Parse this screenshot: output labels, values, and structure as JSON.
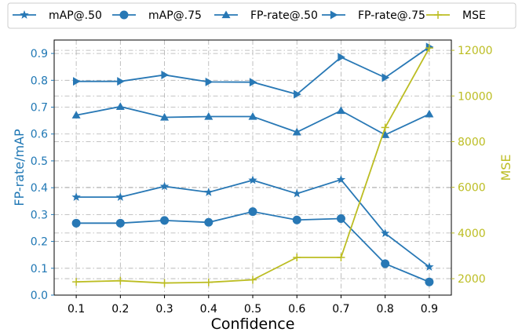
{
  "colors": {
    "left_axis": "#1f77b4",
    "right_axis": "#bcbd22",
    "line_blue": "#2878b5",
    "line_olive": "#bcbd22",
    "grid": "#b0b0b0"
  },
  "chart_data": {
    "type": "line",
    "x": [
      0.1,
      0.2,
      0.3,
      0.4,
      0.5,
      0.6,
      0.7,
      0.8,
      0.9
    ],
    "x_tick_labels": [
      "0.1",
      "0.2",
      "0.3",
      "0.4",
      "0.5",
      "0.6",
      "0.7",
      "0.8",
      "0.9"
    ],
    "xlabel": "Confidence",
    "ylabel_left": "FP-rate/mAP",
    "ylabel_right": "MSE",
    "ylim_left": [
      0,
      0.95
    ],
    "ylim_right": [
      1280,
      12450
    ],
    "y_left_ticks": [
      0.0,
      0.1,
      0.2,
      0.3,
      0.4,
      0.5,
      0.6,
      0.7,
      0.8,
      0.9
    ],
    "y_left_tick_labels": [
      "0.0",
      "0.1",
      "0.2",
      "0.3",
      "0.4",
      "0.5",
      "0.6",
      "0.7",
      "0.8",
      "0.9"
    ],
    "y_right_ticks": [
      2000,
      4000,
      6000,
      8000,
      10000,
      12000
    ],
    "y_right_tick_labels": [
      "2000",
      "4000",
      "6000",
      "8000",
      "10000",
      "12000"
    ],
    "grid": true,
    "legend_position": "top",
    "series": [
      {
        "name": "mAP@.50",
        "axis": "left",
        "marker": "star",
        "values": [
          0.365,
          0.365,
          0.405,
          0.383,
          0.428,
          0.378,
          0.43,
          0.23,
          0.105
        ]
      },
      {
        "name": "mAP@.75",
        "axis": "left",
        "marker": "circle",
        "values": [
          0.268,
          0.268,
          0.278,
          0.271,
          0.311,
          0.28,
          0.285,
          0.117,
          0.049
        ]
      },
      {
        "name": "FP-rate@.50",
        "axis": "left",
        "marker": "triangle-up",
        "values": [
          0.67,
          0.702,
          0.662,
          0.665,
          0.665,
          0.607,
          0.687,
          0.597,
          0.674
        ]
      },
      {
        "name": "FP-rate@.75",
        "axis": "left",
        "marker": "triangle-right",
        "values": [
          0.796,
          0.796,
          0.82,
          0.794,
          0.793,
          0.748,
          0.886,
          0.81,
          0.924
        ]
      },
      {
        "name": "MSE",
        "axis": "right",
        "marker": "plus",
        "values": [
          1860,
          1910,
          1810,
          1840,
          1950,
          2930,
          2930,
          8620,
          12100
        ]
      }
    ]
  }
}
